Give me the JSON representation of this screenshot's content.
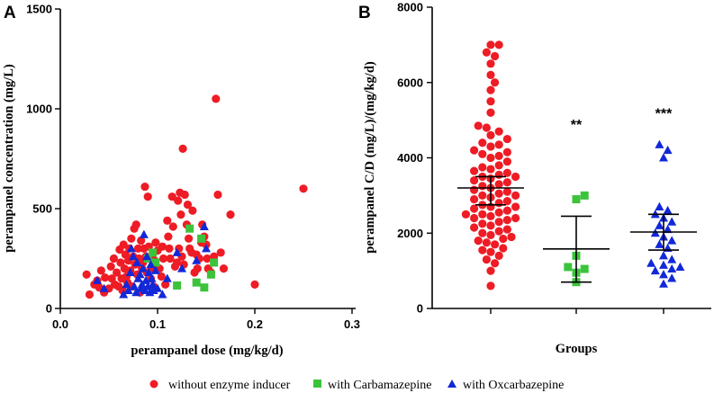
{
  "colors": {
    "red": "#ee1c25",
    "green": "#3cc33c",
    "blue": "#1228d8"
  },
  "legend": {
    "items": [
      {
        "label": "without enzyme inducer",
        "shape": "circle",
        "color": "#ee1c25"
      },
      {
        "label": "with Carbamazepine",
        "shape": "square",
        "color": "#3cc33c"
      },
      {
        "label": "with Oxcarbazepine",
        "shape": "triangle",
        "color": "#1228d8"
      }
    ]
  },
  "chart_data": [
    {
      "panel": "A",
      "type": "scatter",
      "xlabel": "perampanel dose (mg/kg/d)",
      "ylabel": "perampanel concentration (mg/L)",
      "xlim": [
        0,
        0.3
      ],
      "ylim": [
        0,
        1500
      ],
      "xticks": [
        "0.0",
        "0.1",
        "0.2",
        "0.3"
      ],
      "yticks": [
        "0",
        "500",
        "1000",
        "1500"
      ],
      "series": [
        {
          "name": "without enzyme inducer",
          "points": [
            [
              0.027,
              170
            ],
            [
              0.03,
              70
            ],
            [
              0.035,
              120
            ],
            [
              0.038,
              140
            ],
            [
              0.04,
              105
            ],
            [
              0.042,
              190
            ],
            [
              0.045,
              80
            ],
            [
              0.046,
              155
            ],
            [
              0.05,
              100
            ],
            [
              0.052,
              210
            ],
            [
              0.053,
              150
            ],
            [
              0.055,
              250
            ],
            [
              0.056,
              120
            ],
            [
              0.058,
              180
            ],
            [
              0.06,
              110
            ],
            [
              0.061,
              295
            ],
            [
              0.062,
              230
            ],
            [
              0.063,
              150
            ],
            [
              0.064,
              90
            ],
            [
              0.065,
              320
            ],
            [
              0.066,
              200
            ],
            [
              0.067,
              270
            ],
            [
              0.068,
              160
            ],
            [
              0.069,
              130
            ],
            [
              0.07,
              240
            ],
            [
              0.071,
              300
            ],
            [
              0.072,
              190
            ],
            [
              0.073,
              350
            ],
            [
              0.074,
              110
            ],
            [
              0.075,
              260
            ],
            [
              0.076,
              400
            ],
            [
              0.077,
              220
            ],
            [
              0.078,
              420
            ],
            [
              0.079,
              170
            ],
            [
              0.08,
              300
            ],
            [
              0.081,
              250
            ],
            [
              0.082,
              80
            ],
            [
              0.083,
              340
            ],
            [
              0.084,
              200
            ],
            [
              0.085,
              230
            ],
            [
              0.086,
              300
            ],
            [
              0.087,
              610
            ],
            [
              0.088,
              260
            ],
            [
              0.089,
              180
            ],
            [
              0.09,
              560
            ],
            [
              0.091,
              310
            ],
            [
              0.092,
              250
            ],
            [
              0.093,
              150
            ],
            [
              0.094,
              200
            ],
            [
              0.095,
              270
            ],
            [
              0.096,
              110
            ],
            [
              0.097,
              240
            ],
            [
              0.098,
              330
            ],
            [
              0.1,
              290
            ],
            [
              0.102,
              200
            ],
            [
              0.104,
              160
            ],
            [
              0.105,
              310
            ],
            [
              0.106,
              250
            ],
            [
              0.108,
              120
            ],
            [
              0.11,
              440
            ],
            [
              0.111,
              360
            ],
            [
              0.112,
              300
            ],
            [
              0.113,
              250
            ],
            [
              0.115,
              560
            ],
            [
              0.116,
              410
            ],
            [
              0.118,
              210
            ],
            [
              0.12,
              230
            ],
            [
              0.121,
              540
            ],
            [
              0.122,
              300
            ],
            [
              0.123,
              580
            ],
            [
              0.124,
              470
            ],
            [
              0.125,
              260
            ],
            [
              0.126,
              800
            ],
            [
              0.127,
              220
            ],
            [
              0.128,
              570
            ],
            [
              0.13,
              420
            ],
            [
              0.131,
              520
            ],
            [
              0.132,
              350
            ],
            [
              0.133,
              300
            ],
            [
              0.135,
              280
            ],
            [
              0.136,
              490
            ],
            [
              0.138,
              180
            ],
            [
              0.14,
              270
            ],
            [
              0.141,
              200
            ],
            [
              0.143,
              250
            ],
            [
              0.145,
              330
            ],
            [
              0.146,
              420
            ],
            [
              0.148,
              360
            ],
            [
              0.15,
              320
            ],
            [
              0.151,
              250
            ],
            [
              0.152,
              200
            ],
            [
              0.155,
              180
            ],
            [
              0.158,
              260
            ],
            [
              0.16,
              1050
            ],
            [
              0.162,
              570
            ],
            [
              0.165,
              280
            ],
            [
              0.168,
              200
            ],
            [
              0.175,
              470
            ],
            [
              0.2,
              120
            ],
            [
              0.25,
              600
            ]
          ]
        },
        {
          "name": "with Carbamazepine",
          "points": [
            [
              0.09,
              250
            ],
            [
              0.095,
              280
            ],
            [
              0.098,
              230
            ],
            [
              0.12,
              115
            ],
            [
              0.133,
              400
            ],
            [
              0.14,
              130
            ],
            [
              0.145,
              350
            ],
            [
              0.148,
              105
            ],
            [
              0.155,
              170
            ],
            [
              0.158,
              230
            ]
          ]
        },
        {
          "name": "with Oxcarbazepine",
          "points": [
            [
              0.038,
              140
            ],
            [
              0.045,
              100
            ],
            [
              0.065,
              70
            ],
            [
              0.068,
              120
            ],
            [
              0.07,
              90
            ],
            [
              0.072,
              180
            ],
            [
              0.073,
              300
            ],
            [
              0.075,
              260
            ],
            [
              0.076,
              110
            ],
            [
              0.078,
              80
            ],
            [
              0.079,
              230
            ],
            [
              0.08,
              150
            ],
            [
              0.082,
              170
            ],
            [
              0.083,
              100
            ],
            [
              0.084,
              120
            ],
            [
              0.085,
              200
            ],
            [
              0.086,
              370
            ],
            [
              0.087,
              90
            ],
            [
              0.088,
              140
            ],
            [
              0.089,
              260
            ],
            [
              0.09,
              110
            ],
            [
              0.091,
              180
            ],
            [
              0.092,
              80
            ],
            [
              0.093,
              220
            ],
            [
              0.094,
              150
            ],
            [
              0.095,
              120
            ],
            [
              0.096,
              90
            ],
            [
              0.098,
              190
            ],
            [
              0.1,
              100
            ],
            [
              0.105,
              70
            ],
            [
              0.11,
              150
            ],
            [
              0.12,
              280
            ],
            [
              0.125,
              200
            ],
            [
              0.14,
              240
            ],
            [
              0.148,
              410
            ],
            [
              0.15,
              300
            ]
          ]
        }
      ]
    },
    {
      "panel": "B",
      "type": "scatter",
      "xlabel": "Groups",
      "ylabel": "perampanel C/D (mg/L)/(mg/kg/d)",
      "ylim": [
        0,
        8000
      ],
      "yticks": [
        "0",
        "2000",
        "4000",
        "6000",
        "8000"
      ],
      "groups": [
        {
          "name": "without enzyme inducer",
          "mean": 3200,
          "sd_low": 2750,
          "sd_high": 3500,
          "annotation": "",
          "values": [
            600,
            1000,
            1200,
            1300,
            1400,
            1500,
            1550,
            1600,
            1700,
            1750,
            1800,
            1850,
            1900,
            1950,
            2000,
            2050,
            2100,
            2150,
            2200,
            2250,
            2300,
            2350,
            2400,
            2400,
            2450,
            2500,
            2500,
            2550,
            2600,
            2650,
            2700,
            2700,
            2750,
            2800,
            2850,
            2900,
            2950,
            3000,
            3000,
            3050,
            3100,
            3150,
            3200,
            3250,
            3300,
            3350,
            3400,
            3450,
            3500,
            3500,
            3550,
            3600,
            3650,
            3700,
            3750,
            3800,
            3900,
            4000,
            4050,
            4100,
            4150,
            4200,
            4300,
            4350,
            4400,
            4500,
            4600,
            4700,
            4800,
            4850,
            5200,
            5500,
            5800,
            6000,
            6200,
            6500,
            6700,
            6800,
            7000,
            7000
          ]
        },
        {
          "name": "with Carbamazepine",
          "mean": 1580,
          "sd_low": 700,
          "sd_high": 2450,
          "annotation": "**",
          "values": [
            700,
            950,
            1050,
            1100,
            1400,
            2900,
            3000
          ]
        },
        {
          "name": "with Oxcarbazepine",
          "mean": 2030,
          "sd_low": 1550,
          "sd_high": 2500,
          "annotation": "***",
          "values": [
            650,
            800,
            900,
            1000,
            1050,
            1100,
            1150,
            1200,
            1300,
            1400,
            1600,
            1700,
            1800,
            1900,
            2000,
            2100,
            2200,
            2300,
            2400,
            2500,
            2600,
            2700,
            4000,
            4200,
            4350
          ]
        }
      ]
    }
  ]
}
